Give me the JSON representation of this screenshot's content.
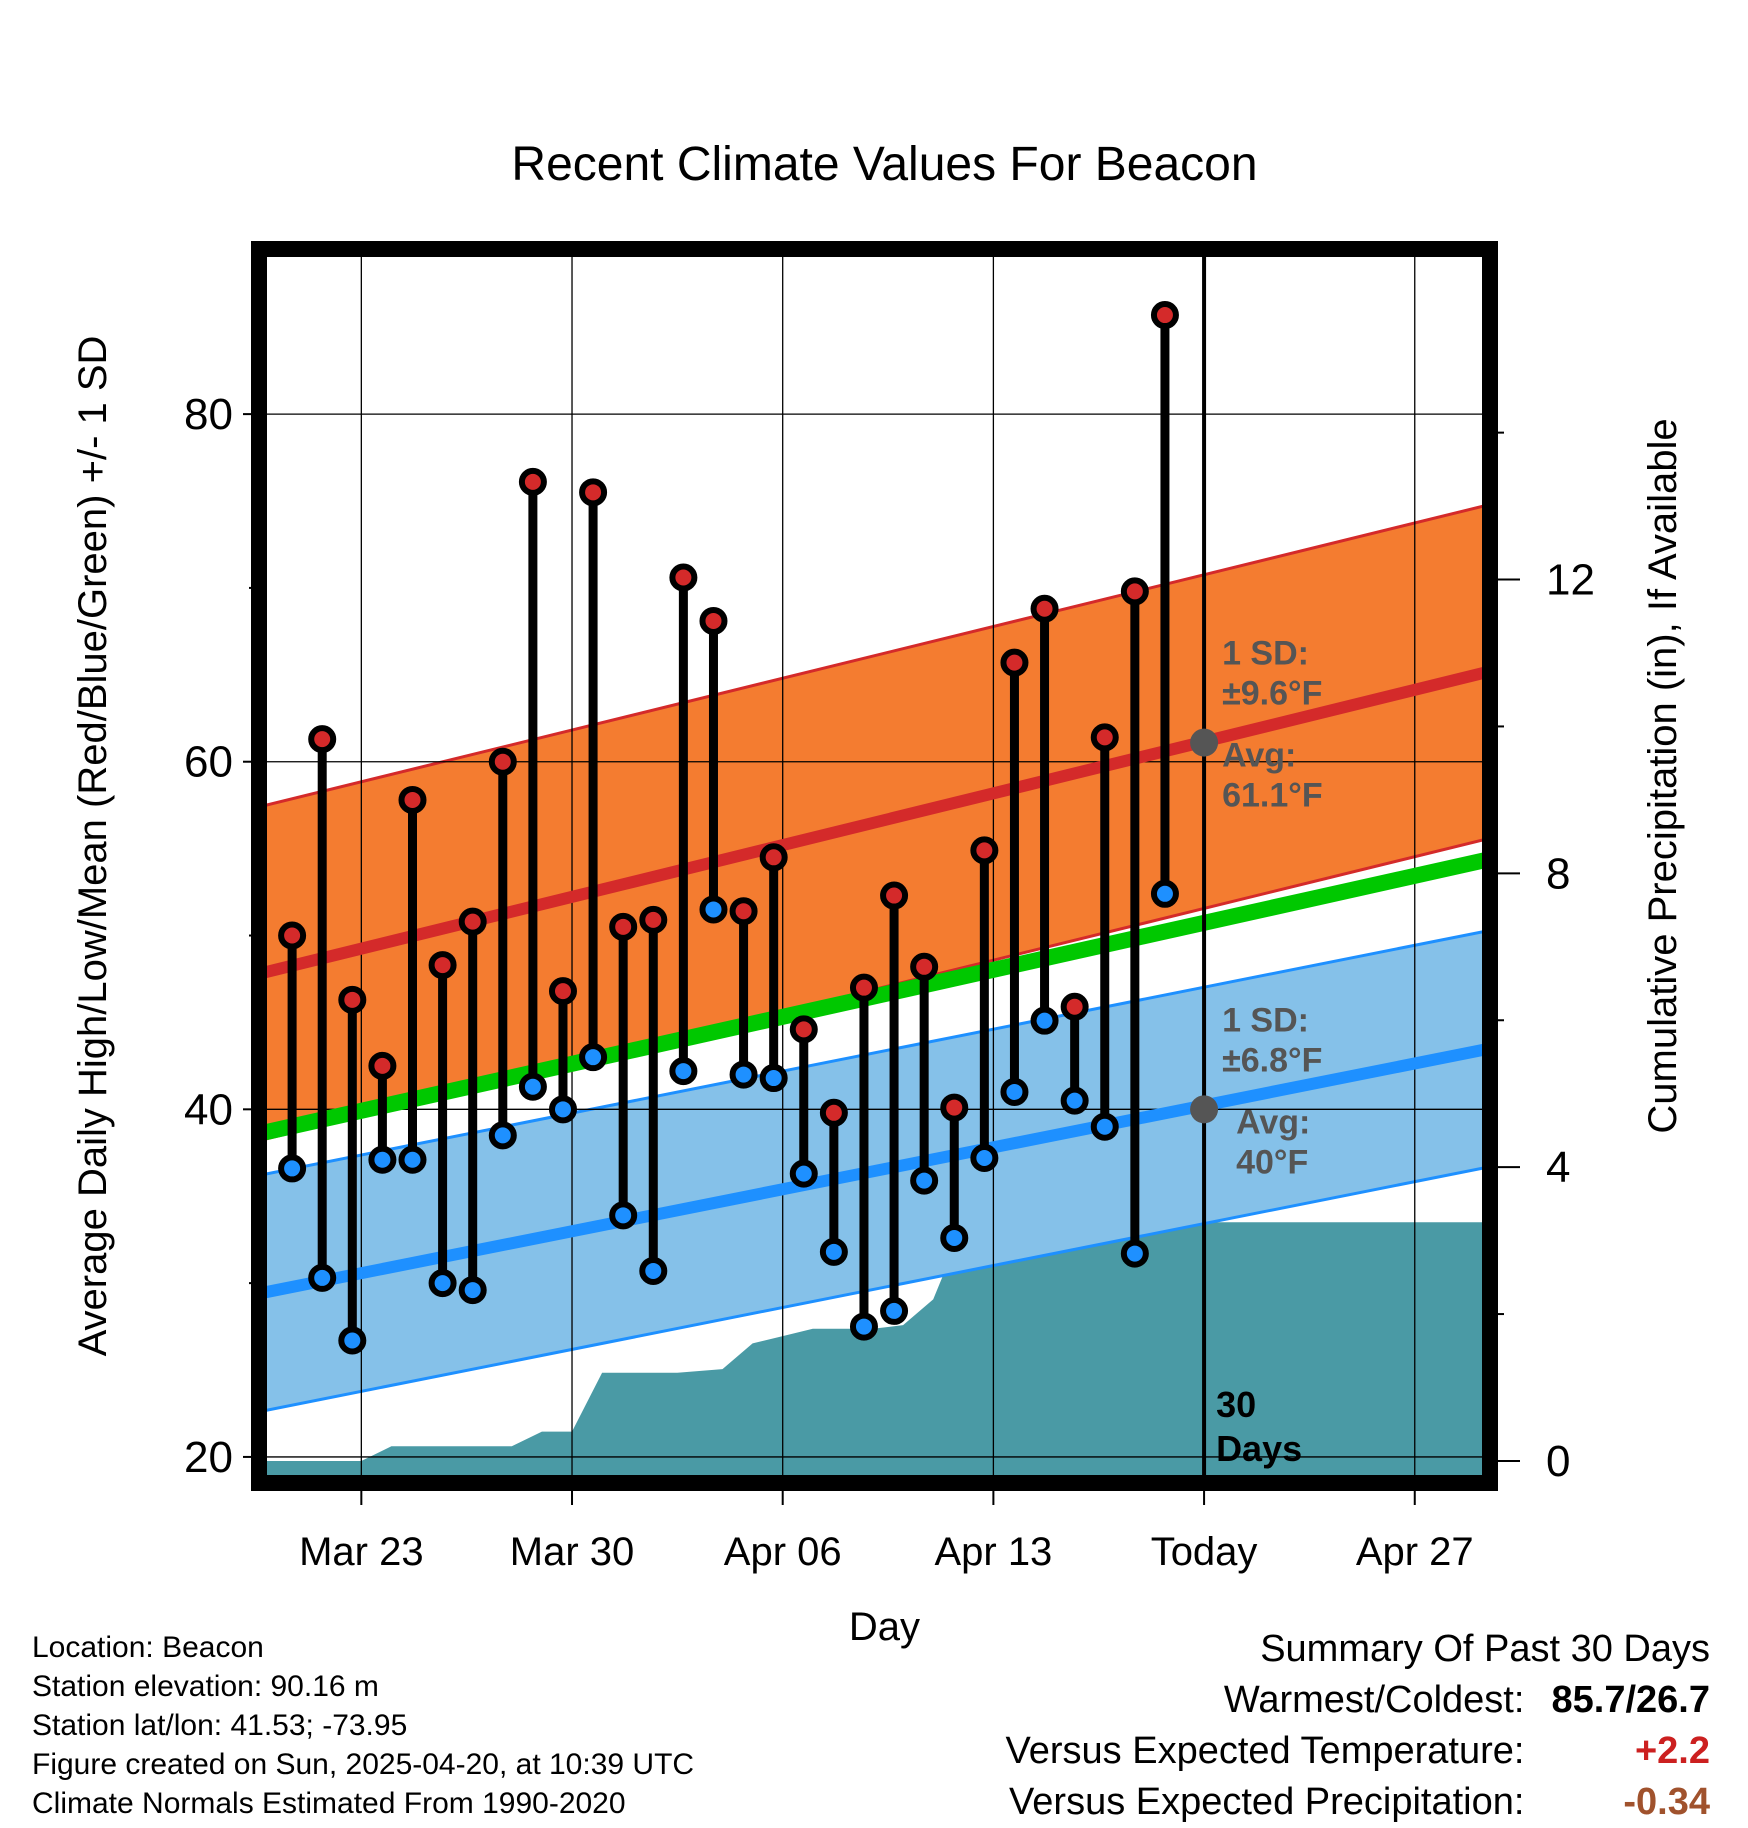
{
  "chart_data": {
    "type": "line",
    "title": "Recent Climate Values For Beacon",
    "xlabel": "Day",
    "ylabel": "Average Daily High/Low/Mean (Red/Blue/Green) +/- 1 SD",
    "y2label": "Cumulative Precipitation (in), If Available",
    "ylim": [
      18.5,
      89.5
    ],
    "y2lim": [
      -0.3,
      16.5
    ],
    "yticks": [
      "20",
      "40",
      "60",
      "80"
    ],
    "y2ticks": [
      "0",
      "4",
      "8",
      "12"
    ],
    "xlim": [
      -0.4,
      40.5
    ],
    "xticks": [
      {
        "day": 3,
        "label": "Mar 23"
      },
      {
        "day": 10,
        "label": "Mar 30"
      },
      {
        "day": 17,
        "label": "Apr 06"
      },
      {
        "day": 24,
        "label": "Apr 13"
      },
      {
        "day": 31,
        "label": "Today"
      },
      {
        "day": 38,
        "label": "Apr 27"
      }
    ],
    "grid": true,
    "today_day": 31,
    "today_label": "30\nDays",
    "days": [
      0.7,
      1.7,
      2.7,
      3.7,
      4.7,
      5.7,
      6.7,
      7.7,
      8.7,
      9.7,
      10.7,
      11.7,
      12.7,
      13.7,
      14.7,
      15.7,
      16.7,
      17.7,
      18.7,
      19.7,
      20.7,
      21.7,
      22.7,
      23.7,
      24.7,
      25.7,
      26.7,
      27.7,
      28.7,
      29.7
    ],
    "series": [
      {
        "name": "High",
        "color": "#d42a2a",
        "values": [
          50.0,
          61.3,
          46.3,
          42.5,
          57.8,
          48.3,
          50.8,
          60.0,
          76.1,
          46.8,
          75.5,
          50.5,
          50.9,
          70.6,
          68.1,
          51.4,
          54.5,
          44.6,
          39.8,
          47.0,
          52.3,
          48.2,
          40.1,
          54.9,
          65.7,
          68.8,
          45.9,
          61.4,
          69.8,
          85.7
        ]
      },
      {
        "name": "Low",
        "color": "#1e90ff",
        "values": [
          36.6,
          30.3,
          26.7,
          37.1,
          37.1,
          30.0,
          29.6,
          38.5,
          41.3,
          40.0,
          43.0,
          33.9,
          30.7,
          42.2,
          51.5,
          42.0,
          41.8,
          36.3,
          31.8,
          27.5,
          28.4,
          35.9,
          32.6,
          37.2,
          41.0,
          45.1,
          40.5,
          39.0,
          31.7,
          52.4
        ]
      }
    ],
    "normals": {
      "high_avg": [
        47.8,
        65.2
      ],
      "high_sd": 9.6,
      "low_avg": [
        29.4,
        43.5
      ],
      "low_sd": 6.8,
      "mean_avg": [
        38.6,
        54.4
      ],
      "x_range": [
        -0.4,
        40.5
      ]
    },
    "precip": {
      "color": "#4a9aa5",
      "points": [
        [
          -0.4,
          0.0
        ],
        [
          3.0,
          0.0
        ],
        [
          4.0,
          0.2
        ],
        [
          8.0,
          0.2
        ],
        [
          9.0,
          0.4
        ],
        [
          10.0,
          0.4
        ],
        [
          11.0,
          1.2
        ],
        [
          13.5,
          1.2
        ],
        [
          15.0,
          1.25
        ],
        [
          16.0,
          1.6
        ],
        [
          17.0,
          1.7
        ],
        [
          18.0,
          1.8
        ],
        [
          20.0,
          1.8
        ],
        [
          21.0,
          1.85
        ],
        [
          22.0,
          2.2
        ],
        [
          23.0,
          3.2
        ],
        [
          31.0,
          3.25
        ],
        [
          40.5,
          3.25
        ]
      ]
    },
    "annotations": {
      "high": {
        "sd_title": "1 SD:",
        "sd_value": "±9.6°F",
        "avg_title": "Avg:",
        "avg_value": "61.1°F",
        "avg_y": 61.1
      },
      "low": {
        "sd_title": "1 SD:",
        "sd_value": "±6.8°F",
        "avg_title": "Avg:",
        "avg_value": "40°F",
        "avg_y": 40.0
      }
    },
    "colors": {
      "high_band": "#f47c30",
      "high_line": "#d42a2a",
      "low_band": "#85c1e9",
      "low_line": "#1e90ff",
      "mean_line": "#00c800",
      "annotation": "#555555"
    }
  },
  "info": {
    "location": "Location: Beacon",
    "elevation": "Station elevation: 90.16 m",
    "latlon": "Station lat/lon: 41.53; -73.95",
    "created": "Figure created on Sun, 2025-04-20, at 10:39 UTC",
    "normals": "Climate Normals Estimated From 1990-2020"
  },
  "summary": {
    "title": "Summary Of Past 30 Days",
    "warmest_label": "Warmest/Coldest:",
    "warmest_value": "85.7/26.7",
    "temp_label": "Versus Expected Temperature:",
    "temp_value": "+2.2",
    "temp_color": "#cc2020",
    "precip_label": "Versus Expected Precipitation:",
    "precip_value": "-0.34",
    "precip_color": "#a0522d"
  }
}
